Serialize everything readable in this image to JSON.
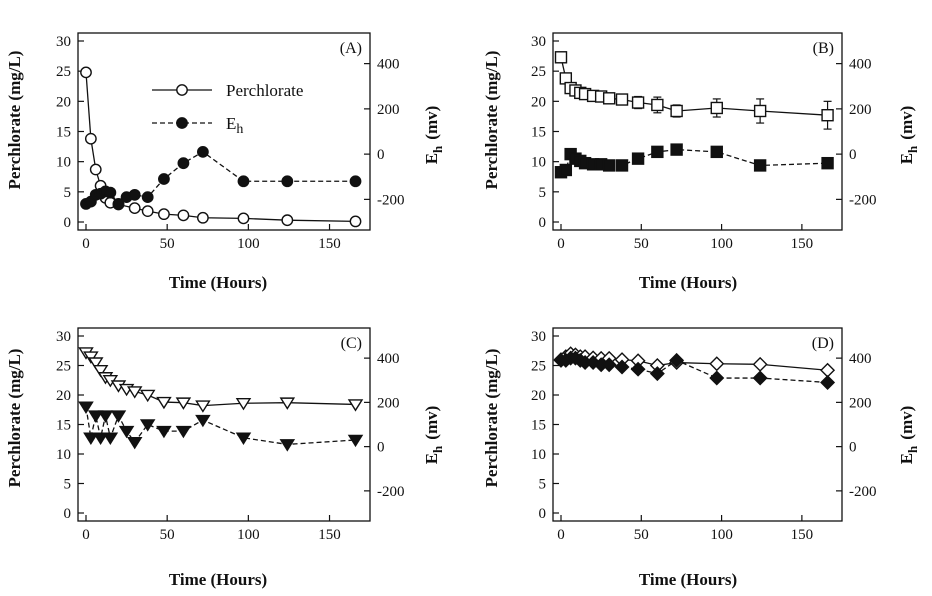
{
  "chart_data": [
    {
      "type": "line",
      "panel_label": "(A)",
      "xlabel": "Time (Hours)",
      "ylabel": "Perchlorate (mg/L)",
      "y2label_main": "E",
      "y2label_sub": "h",
      "y2label_unit": "(mv)",
      "xlim": [
        0,
        170
      ],
      "ylim": [
        0,
        30
      ],
      "y2lim": [
        -300,
        500
      ],
      "xticks": [
        "0",
        "50",
        "100",
        "150"
      ],
      "yticks": [
        "0",
        "5",
        "10",
        "15",
        "20",
        "25",
        "30"
      ],
      "y2ticks": [
        "-200",
        "0",
        "200",
        "400"
      ],
      "legend": {
        "placement": "top-center",
        "perchlorate": "Perchlorate",
        "eh_main": "E",
        "eh_sub": "h"
      },
      "series": [
        {
          "name": "Perchlorate",
          "axis": "left",
          "marker": "circle-open",
          "x": [
            0,
            3,
            6,
            9,
            12,
            15,
            20,
            30,
            38,
            48,
            60,
            72,
            97,
            124,
            166
          ],
          "y": [
            24.8,
            13.8,
            8.7,
            6.0,
            4.0,
            3.2,
            2.9,
            2.3,
            1.8,
            1.3,
            1.1,
            0.7,
            0.6,
            0.3,
            0.1
          ]
        },
        {
          "name": "Eh",
          "axis": "right",
          "marker": "circle-filled",
          "x": [
            0,
            3,
            6,
            9,
            12,
            15,
            20,
            25,
            30,
            38,
            48,
            60,
            72,
            97,
            124,
            166
          ],
          "y": [
            -220,
            -210,
            -180,
            -175,
            -165,
            -170,
            -220,
            -190,
            -180,
            -190,
            -110,
            -40,
            10,
            -120,
            -120,
            -120
          ]
        }
      ]
    },
    {
      "type": "line",
      "panel_label": "(B)",
      "xlabel": "Time (Hours)",
      "ylabel": "Perchlorate (mg/L)",
      "y2label_main": "E",
      "y2label_sub": "h",
      "y2label_unit": "(mv)",
      "xlim": [
        0,
        170
      ],
      "ylim": [
        0,
        30
      ],
      "y2lim": [
        -300,
        500
      ],
      "xticks": [
        "0",
        "50",
        "100",
        "150"
      ],
      "yticks": [
        "0",
        "5",
        "10",
        "15",
        "20",
        "25",
        "30"
      ],
      "y2ticks": [
        "-200",
        "0",
        "200",
        "400"
      ],
      "series": [
        {
          "name": "Perchlorate",
          "axis": "left",
          "marker": "square-open",
          "x": [
            0,
            3,
            6,
            9,
            12,
            15,
            20,
            25,
            30,
            38,
            48,
            60,
            72,
            97,
            124,
            166
          ],
          "y": [
            27.3,
            23.8,
            22.2,
            21.8,
            21.4,
            21.2,
            20.9,
            20.8,
            20.5,
            20.3,
            19.8,
            19.4,
            18.4,
            18.9,
            18.4,
            17.7
          ],
          "yerr": [
            0.5,
            0.5,
            0.4,
            0.4,
            0.4,
            0.4,
            0.3,
            0.3,
            0.3,
            0.3,
            1.0,
            1.3,
            1.0,
            1.5,
            2.0,
            2.3
          ]
        },
        {
          "name": "Eh",
          "axis": "right",
          "marker": "square-filled",
          "x": [
            0,
            3,
            6,
            9,
            12,
            15,
            20,
            25,
            30,
            38,
            48,
            60,
            72,
            97,
            124,
            166
          ],
          "y": [
            -80,
            -70,
            0,
            -20,
            -30,
            -40,
            -45,
            -45,
            -50,
            -50,
            -20,
            10,
            20,
            10,
            -50,
            -40
          ]
        }
      ]
    },
    {
      "type": "line",
      "panel_label": "(C)",
      "xlabel": "Time (Hours)",
      "ylabel": "Perchlorate (mg/L)",
      "y2label_main": "E",
      "y2label_sub": "h",
      "y2label_unit": "(mv)",
      "xlim": [
        0,
        170
      ],
      "ylim": [
        0,
        30
      ],
      "y2lim": [
        -300,
        500
      ],
      "xticks": [
        "0",
        "50",
        "100",
        "150"
      ],
      "yticks": [
        "0",
        "5",
        "10",
        "15",
        "20",
        "25",
        "30"
      ],
      "y2ticks": [
        "-200",
        "0",
        "200",
        "400"
      ],
      "series": [
        {
          "name": "Perchlorate",
          "axis": "left",
          "marker": "triangle-down-open",
          "x": [
            0,
            3,
            6,
            9,
            12,
            15,
            20,
            25,
            30,
            38,
            48,
            60,
            72,
            97,
            124,
            166
          ],
          "y": [
            27.2,
            26.5,
            25.5,
            24.2,
            23.0,
            22.5,
            21.6,
            21.0,
            20.6,
            20.0,
            18.8,
            18.7,
            18.2,
            18.6,
            18.7,
            18.4
          ]
        },
        {
          "name": "Eh",
          "axis": "right",
          "marker": "triangle-down-filled",
          "x": [
            0,
            3,
            6,
            9,
            12,
            15,
            20,
            25,
            30,
            38,
            48,
            60,
            72,
            97,
            124,
            166
          ],
          "y": [
            180,
            40,
            140,
            40,
            140,
            40,
            140,
            70,
            20,
            100,
            70,
            70,
            120,
            40,
            10,
            30
          ]
        }
      ]
    },
    {
      "type": "line",
      "panel_label": "(D)",
      "xlabel": "Time (Hours)",
      "ylabel": "Perchlorate (mg/L)",
      "y2label_main": "E",
      "y2label_sub": "h",
      "y2label_unit": "(mv)",
      "xlim": [
        0,
        170
      ],
      "ylim": [
        0,
        30
      ],
      "y2lim": [
        -300,
        500
      ],
      "xticks": [
        "0",
        "50",
        "100",
        "150"
      ],
      "yticks": [
        "0",
        "5",
        "10",
        "15",
        "20",
        "25",
        "30"
      ],
      "y2ticks": [
        "-200",
        "0",
        "200",
        "400"
      ],
      "series": [
        {
          "name": "Perchlorate",
          "axis": "left",
          "marker": "diamond-open",
          "x": [
            0,
            3,
            6,
            9,
            12,
            15,
            20,
            25,
            30,
            38,
            48,
            60,
            72,
            97,
            124,
            166
          ],
          "y": [
            26.0,
            26.5,
            27.0,
            26.8,
            26.5,
            26.5,
            26.3,
            26.2,
            26.2,
            26.0,
            25.8,
            25.0,
            25.5,
            25.3,
            25.2,
            24.2
          ]
        },
        {
          "name": "Eh",
          "axis": "right",
          "marker": "diamond-filled",
          "x": [
            0,
            3,
            6,
            9,
            12,
            15,
            20,
            25,
            30,
            38,
            48,
            60,
            72,
            97,
            124,
            166
          ],
          "y": [
            390,
            390,
            400,
            400,
            390,
            380,
            380,
            370,
            370,
            360,
            350,
            330,
            390,
            310,
            310,
            290
          ]
        }
      ]
    }
  ]
}
